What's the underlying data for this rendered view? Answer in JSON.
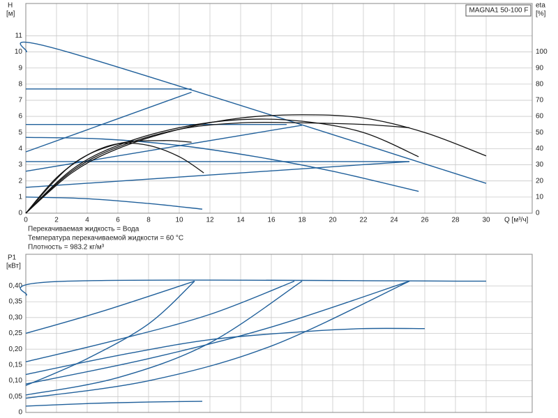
{
  "chart_data": [
    {
      "type": "line",
      "title": "MAGNA1 50-100 F",
      "ylabel": "H",
      "yunit": "[м]",
      "y2label": "eta",
      "y2unit": "[%]",
      "xlabel": "Q [м³/ч]",
      "annotations": [
        "Перекачиваемая жидкость = Вода",
        "Температура перекачиваемой жидкости = 60 °C",
        "Плотность = 983.2 кг/м³"
      ],
      "xlim": [
        0,
        33
      ],
      "xticks": [
        0,
        2,
        4,
        6,
        8,
        10,
        12,
        14,
        16,
        18,
        20,
        22,
        24,
        26,
        28,
        30
      ],
      "ylim": [
        0,
        13
      ],
      "yticks": [
        0,
        1,
        2,
        3,
        4,
        5,
        6,
        7,
        8,
        9,
        10,
        11
      ],
      "y2lim": [
        0,
        130
      ],
      "y2ticks": [
        0,
        10,
        20,
        30,
        40,
        50,
        60,
        70,
        80,
        90,
        100
      ],
      "grid": true,
      "series": [
        {
          "color": "#1f5f9a",
          "x": [
            0,
            2.7,
            30
          ],
          "values": [
            10,
            10,
            1.85
          ]
        },
        {
          "color": "#1f5f9a",
          "x": [
            0,
            10.8
          ],
          "values": [
            7.7,
            7.7
          ]
        },
        {
          "color": "#1f5f9a",
          "x": [
            0,
            10.8
          ],
          "values": [
            3.8,
            7.5
          ]
        },
        {
          "color": "#1f5f9a",
          "x": [
            0,
            17
          ],
          "values": [
            5.5,
            5.5
          ]
        },
        {
          "color": "#1f5f9a",
          "x": [
            0,
            18
          ],
          "values": [
            2.6,
            5.45
          ]
        },
        {
          "color": "#1f5f9a",
          "x": [
            0,
            25
          ],
          "values": [
            3.2,
            3.2
          ]
        },
        {
          "color": "#1f5f9a",
          "x": [
            0,
            25
          ],
          "values": [
            1.6,
            3.2
          ]
        },
        {
          "color": "#1f5f9a",
          "x": [
            0,
            5,
            10,
            15,
            20,
            25.6
          ],
          "values": [
            4.7,
            4.6,
            4.2,
            3.5,
            2.6,
            1.35
          ]
        },
        {
          "color": "#1f5f9a",
          "x": [
            0,
            4,
            8,
            11.5
          ],
          "values": [
            1.0,
            0.9,
            0.6,
            0.25
          ]
        },
        {
          "color": "#111111",
          "axis": "y2",
          "x": [
            0,
            3,
            6,
            10,
            14,
            18,
            22,
            26,
            30
          ],
          "values": [
            0,
            25,
            40,
            52,
            59,
            61,
            59,
            50,
            35.5
          ]
        },
        {
          "color": "#111111",
          "axis": "y2",
          "x": [
            0,
            3,
            6,
            10,
            14,
            18,
            22,
            25.6
          ],
          "values": [
            0,
            27,
            42,
            53,
            58,
            57,
            50,
            35
          ]
        },
        {
          "color": "#111111",
          "axis": "y2",
          "x": [
            0,
            2,
            4,
            6,
            8,
            10,
            11.6
          ],
          "values": [
            0,
            22,
            36,
            43,
            42,
            35,
            25
          ]
        },
        {
          "color": "#111111",
          "axis": "y2",
          "x": [
            0,
            3,
            6,
            10,
            14,
            18,
            22,
            25
          ],
          "values": [
            0,
            26,
            41,
            52,
            56,
            56,
            55,
            53
          ]
        },
        {
          "color": "#111111",
          "axis": "y2",
          "x": [
            0,
            3,
            6,
            9,
            10.8
          ],
          "values": [
            0,
            30,
            43,
            45,
            44
          ]
        }
      ]
    },
    {
      "type": "line",
      "ylabel": "P1",
      "yunit": "[кВт]",
      "xlim": [
        0,
        33
      ],
      "xticks": [
        0,
        2,
        4,
        6,
        8,
        10,
        12,
        14,
        16,
        18,
        20,
        22,
        24,
        26,
        28,
        30
      ],
      "ylim": [
        0,
        0.5
      ],
      "yticks": [
        {
          "value": 0,
          "label": "0"
        },
        {
          "value": 0.05,
          "label": "0,05"
        },
        {
          "value": 0.1,
          "label": "0,10"
        },
        {
          "value": 0.15,
          "label": "0,15"
        },
        {
          "value": 0.2,
          "label": "0,20"
        },
        {
          "value": 0.25,
          "label": "0,25"
        },
        {
          "value": 0.3,
          "label": "0,30"
        },
        {
          "value": 0.35,
          "label": "0,35"
        },
        {
          "value": 0.4,
          "label": "0,40"
        }
      ],
      "grid": true,
      "series": [
        {
          "color": "#1f5f9a",
          "x": [
            0,
            2.7,
            30
          ],
          "values": [
            0.37,
            0.415,
            0.415
          ]
        },
        {
          "color": "#1f5f9a",
          "x": [
            0,
            5,
            11
          ],
          "values": [
            0.25,
            0.32,
            0.415
          ]
        },
        {
          "color": "#1f5f9a",
          "x": [
            0,
            6,
            12,
            17.5
          ],
          "values": [
            0.16,
            0.23,
            0.31,
            0.415
          ]
        },
        {
          "color": "#1f5f9a",
          "x": [
            0,
            8,
            16,
            25
          ],
          "values": [
            0.09,
            0.17,
            0.27,
            0.415
          ]
        },
        {
          "color": "#1f5f9a",
          "x": [
            0,
            6,
            12,
            18,
            22,
            26
          ],
          "values": [
            0.12,
            0.18,
            0.23,
            0.255,
            0.265,
            0.265
          ]
        },
        {
          "color": "#1f5f9a",
          "x": [
            0,
            4,
            8,
            11.5
          ],
          "values": [
            0.02,
            0.028,
            0.033,
            0.035
          ]
        },
        {
          "color": "#1f5f9a",
          "x": [
            0,
            4,
            8,
            11
          ],
          "values": [
            0.085,
            0.17,
            0.28,
            0.415
          ]
        },
        {
          "color": "#1f5f9a",
          "x": [
            0,
            6,
            12,
            18
          ],
          "values": [
            0.055,
            0.11,
            0.22,
            0.415
          ]
        },
        {
          "color": "#1f5f9a",
          "x": [
            0,
            8,
            16,
            25
          ],
          "values": [
            0.045,
            0.1,
            0.21,
            0.415
          ]
        }
      ]
    }
  ]
}
